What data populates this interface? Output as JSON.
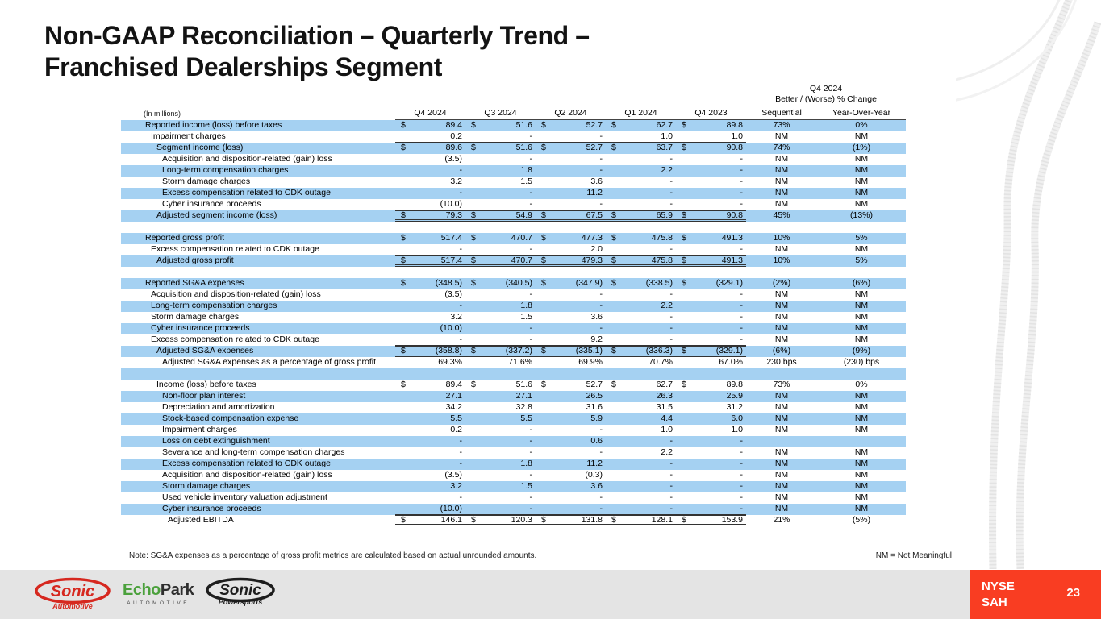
{
  "title": "Non-GAAP Reconciliation – Quarterly Trend –\nFranchised Dealerships Segment",
  "table": {
    "units_label": "(In millions)",
    "quarter_headers": [
      "Q4 2024",
      "Q3 2024",
      "Q2 2024",
      "Q1 2024",
      "Q4 2023"
    ],
    "change_header": {
      "line1": "Q4 2024",
      "line2": "Better / (Worse) % Change",
      "col1": "Sequential",
      "col2": "Year-Over-Year"
    },
    "rows": [
      {
        "label": "Reported income (loss) before taxes",
        "indent": 0,
        "dollar": true,
        "values": [
          "89.4",
          "51.6",
          "52.7",
          "62.7",
          "89.8"
        ],
        "seq": "73%",
        "yoy": "0%",
        "shade": true
      },
      {
        "label": "Impairment charges",
        "indent": 1,
        "dollar": false,
        "values": [
          "0.2",
          "-",
          "-",
          "1.0",
          "1.0"
        ],
        "seq": "NM",
        "yoy": "NM",
        "shade": false,
        "rule": "bottom"
      },
      {
        "label": "Segment income (loss)",
        "indent": 2,
        "dollar": true,
        "values": [
          "89.6",
          "51.6",
          "52.7",
          "63.7",
          "90.8"
        ],
        "seq": "74%",
        "yoy": "(1%)",
        "shade": true
      },
      {
        "label": "Acquisition and disposition-related (gain) loss",
        "indent": 3,
        "dollar": false,
        "values": [
          "(3.5)",
          "-",
          "-",
          "-",
          "-"
        ],
        "seq": "NM",
        "yoy": "NM",
        "shade": false
      },
      {
        "label": "Long-term compensation charges",
        "indent": 3,
        "dollar": false,
        "values": [
          "-",
          "1.8",
          "-",
          "2.2",
          "-"
        ],
        "seq": "NM",
        "yoy": "NM",
        "shade": true
      },
      {
        "label": "Storm damage charges",
        "indent": 3,
        "dollar": false,
        "values": [
          "3.2",
          "1.5",
          "3.6",
          "-",
          "-"
        ],
        "seq": "NM",
        "yoy": "NM",
        "shade": false
      },
      {
        "label": "Excess compensation related to CDK outage",
        "indent": 3,
        "dollar": false,
        "values": [
          "-",
          "-",
          "11.2",
          "-",
          "-"
        ],
        "seq": "NM",
        "yoy": "NM",
        "shade": true
      },
      {
        "label": "Cyber insurance proceeds",
        "indent": 3,
        "dollar": false,
        "values": [
          "(10.0)",
          "-",
          "-",
          "-",
          "-"
        ],
        "seq": "NM",
        "yoy": "NM",
        "shade": false,
        "rule": "bottom"
      },
      {
        "label": "Adjusted segment income (loss)",
        "indent": 2,
        "dollar": true,
        "values": [
          "79.3",
          "54.9",
          "67.5",
          "65.9",
          "90.8"
        ],
        "seq": "45%",
        "yoy": "(13%)",
        "shade": true,
        "rule": "total"
      },
      {
        "blank": true,
        "shade": false
      },
      {
        "label": "Reported gross profit",
        "indent": 0,
        "dollar": true,
        "values": [
          "517.4",
          "470.7",
          "477.3",
          "475.8",
          "491.3"
        ],
        "seq": "10%",
        "yoy": "5%",
        "shade": true
      },
      {
        "label": "Excess compensation related to CDK outage",
        "indent": 1,
        "dollar": false,
        "values": [
          "-",
          "-",
          "2.0",
          "-",
          "-"
        ],
        "seq": "NM",
        "yoy": "NM",
        "shade": false,
        "rule": "bottom"
      },
      {
        "label": "Adjusted gross profit",
        "indent": 2,
        "dollar": true,
        "values": [
          "517.4",
          "470.7",
          "479.3",
          "475.8",
          "491.3"
        ],
        "seq": "10%",
        "yoy": "5%",
        "shade": true,
        "rule": "total"
      },
      {
        "blank": true,
        "shade": false
      },
      {
        "label": "Reported SG&A expenses",
        "indent": 0,
        "dollar": true,
        "values": [
          "(348.5)",
          "(340.5)",
          "(347.9)",
          "(338.5)",
          "(329.1)"
        ],
        "seq": "(2%)",
        "yoy": "(6%)",
        "shade": true
      },
      {
        "label": "Acquisition and disposition-related (gain) loss",
        "indent": 1,
        "dollar": false,
        "values": [
          "(3.5)",
          "-",
          "-",
          "-",
          "-"
        ],
        "seq": "NM",
        "yoy": "NM",
        "shade": false
      },
      {
        "label": "Long-term compensation charges",
        "indent": 1,
        "dollar": false,
        "values": [
          "-",
          "1.8",
          "-",
          "2.2",
          "-"
        ],
        "seq": "NM",
        "yoy": "NM",
        "shade": true
      },
      {
        "label": "Storm damage charges",
        "indent": 1,
        "dollar": false,
        "values": [
          "3.2",
          "1.5",
          "3.6",
          "-",
          "-"
        ],
        "seq": "NM",
        "yoy": "NM",
        "shade": false
      },
      {
        "label": "Cyber insurance proceeds",
        "indent": 1,
        "dollar": false,
        "values": [
          "(10.0)",
          "-",
          "-",
          "-",
          "-"
        ],
        "seq": "NM",
        "yoy": "NM",
        "shade": true
      },
      {
        "label": "Excess compensation related to CDK outage",
        "indent": 1,
        "dollar": false,
        "values": [
          "-",
          "-",
          "9.2",
          "-",
          "-"
        ],
        "seq": "NM",
        "yoy": "NM",
        "shade": false,
        "rule": "bottom"
      },
      {
        "label": "Adjusted SG&A expenses",
        "indent": 2,
        "dollar": true,
        "values": [
          "(358.8)",
          "(337.2)",
          "(335.1)",
          "(336.3)",
          "(329.1)"
        ],
        "seq": "(6%)",
        "yoy": "(9%)",
        "shade": true,
        "rule": "total"
      },
      {
        "label": "Adjusted SG&A expenses as a percentage of gross profit",
        "indent": 3,
        "dollar": false,
        "values": [
          "69.3%",
          "71.6%",
          "69.9%",
          "70.7%",
          "67.0%"
        ],
        "seq": "230 bps",
        "yoy": "(230) bps",
        "shade": false
      },
      {
        "blank": true,
        "shade": true
      },
      {
        "label": "Income (loss) before taxes",
        "indent": 2,
        "dollar": true,
        "values": [
          "89.4",
          "51.6",
          "52.7",
          "62.7",
          "89.8"
        ],
        "seq": "73%",
        "yoy": "0%",
        "shade": false
      },
      {
        "label": "Non-floor plan interest",
        "indent": 3,
        "dollar": false,
        "values": [
          "27.1",
          "27.1",
          "26.5",
          "26.3",
          "25.9"
        ],
        "seq": "NM",
        "yoy": "NM",
        "shade": true
      },
      {
        "label": "Depreciation and amortization",
        "indent": 3,
        "dollar": false,
        "values": [
          "34.2",
          "32.8",
          "31.6",
          "31.5",
          "31.2"
        ],
        "seq": "NM",
        "yoy": "NM",
        "shade": false
      },
      {
        "label": "Stock-based compensation expense",
        "indent": 3,
        "dollar": false,
        "values": [
          "5.5",
          "5.5",
          "5.9",
          "4.4",
          "6.0"
        ],
        "seq": "NM",
        "yoy": "NM",
        "shade": true
      },
      {
        "label": "Impairment charges",
        "indent": 3,
        "dollar": false,
        "values": [
          "0.2",
          "-",
          "-",
          "1.0",
          "1.0"
        ],
        "seq": "NM",
        "yoy": "NM",
        "shade": false
      },
      {
        "label": "Loss on debt extinguishment",
        "indent": 3,
        "dollar": false,
        "values": [
          "-",
          "-",
          "0.6",
          "-",
          "-"
        ],
        "seq": "",
        "yoy": "",
        "shade": true
      },
      {
        "label": "Severance and long-term compensation charges",
        "indent": 3,
        "dollar": false,
        "values": [
          "-",
          "-",
          "-",
          "2.2",
          "-"
        ],
        "seq": "NM",
        "yoy": "NM",
        "shade": false
      },
      {
        "label": "Excess compensation related to CDK outage",
        "indent": 3,
        "dollar": false,
        "values": [
          "-",
          "1.8",
          "11.2",
          "-",
          "-"
        ],
        "seq": "NM",
        "yoy": "NM",
        "shade": true
      },
      {
        "label": "Acquisition and disposition-related (gain) loss",
        "indent": 3,
        "dollar": false,
        "values": [
          "(3.5)",
          "-",
          "(0.3)",
          "-",
          "-"
        ],
        "seq": "NM",
        "yoy": "NM",
        "shade": false
      },
      {
        "label": "Storm damage charges",
        "indent": 3,
        "dollar": false,
        "values": [
          "3.2",
          "1.5",
          "3.6",
          "-",
          "-"
        ],
        "seq": "NM",
        "yoy": "NM",
        "shade": true
      },
      {
        "label": "Used vehicle inventory valuation adjustment",
        "indent": 3,
        "dollar": false,
        "values": [
          "-",
          "-",
          "-",
          "-",
          "-"
        ],
        "seq": "NM",
        "yoy": "NM",
        "shade": false
      },
      {
        "label": "Cyber insurance proceeds",
        "indent": 3,
        "dollar": false,
        "values": [
          "(10.0)",
          "-",
          "-",
          "-",
          "-"
        ],
        "seq": "NM",
        "yoy": "NM",
        "shade": true,
        "rule": "bottom"
      },
      {
        "label": "Adjusted EBITDA",
        "indent": 4,
        "dollar": true,
        "values": [
          "146.1",
          "120.3",
          "131.8",
          "128.1",
          "153.9"
        ],
        "seq": "21%",
        "yoy": "(5%)",
        "shade": false,
        "rule": "total"
      }
    ]
  },
  "note": "Note: SG&A expenses as a percentage of gross profit metrics are calculated based on actual unrounded amounts.",
  "nm_note": "NM = Not Meaningful",
  "footer": {
    "sonic_automotive": {
      "line1": "Sonic",
      "line2": "Automotive"
    },
    "echopark": {
      "part1": "Echo",
      "part2": "Park",
      "sub": "AUTOMOTIVE"
    },
    "sonic_powersports": {
      "line1": "Sonic",
      "line2": "Powersports"
    },
    "ticker_line1": "NYSE",
    "ticker_line2": "SAH",
    "page_number": "23"
  },
  "colors": {
    "row_highlight": "#a5d1f2",
    "accent_red": "#f93d22",
    "sonic_red": "#d6281f",
    "echopark_green": "#4ba13c",
    "footer_gray": "#e4e4e4"
  }
}
